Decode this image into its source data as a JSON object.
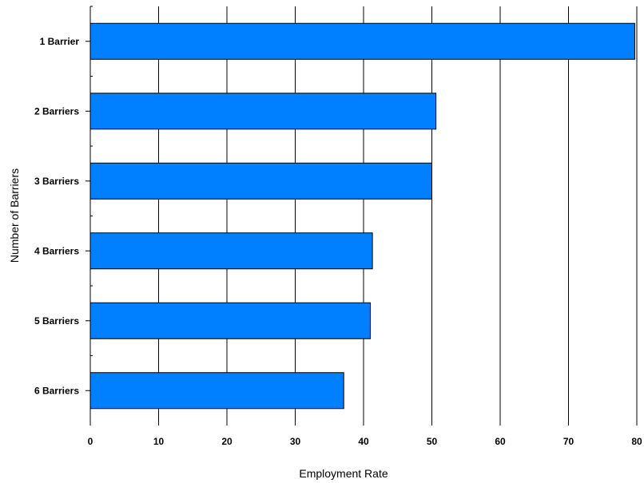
{
  "chart_data": {
    "type": "bar",
    "orientation": "horizontal",
    "categories": [
      "1 Barrier",
      "2 Barriers",
      "3 Barriers",
      "4 Barriers",
      "5 Barriers",
      "6 Barriers"
    ],
    "series": [
      {
        "values": [
          79.7,
          50.6,
          50.0,
          41.3,
          41.0,
          37.1
        ]
      }
    ],
    "title": "",
    "xlabel": "Employment Rate",
    "ylabel": "Number of Barriers",
    "xlim": [
      0,
      80
    ],
    "xticks": [
      "0",
      "10",
      "20",
      "30",
      "40",
      "50",
      "60",
      "70",
      "80"
    ],
    "grid": "vertical",
    "legend": "none",
    "colors": {
      "bar_fill": "#0080ff",
      "bar_stroke": "#000000",
      "grid": "#000000"
    }
  }
}
